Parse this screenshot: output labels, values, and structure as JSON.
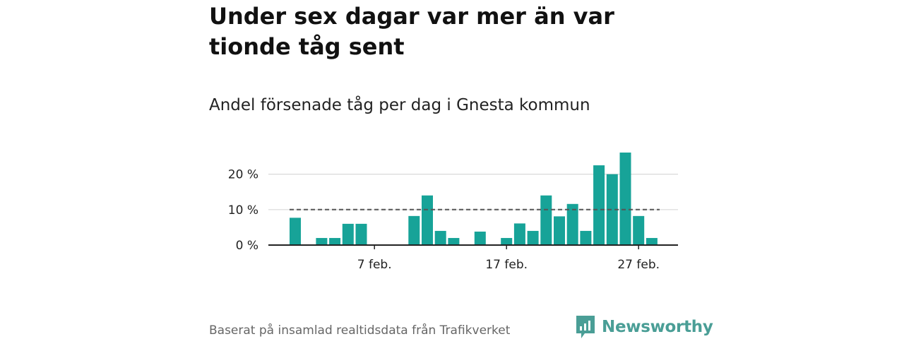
{
  "title": "Under sex dagar var mer än var tionde tåg sent",
  "subtitle": "Andel försenade tåg per dag i Gnesta kommun",
  "source": "Baserat på insamlad realtidsdata från Trafikverket",
  "brand": "Newsworthy",
  "colors": {
    "bar": "#17a398",
    "reference_line": "#555555",
    "grid": "#d9d9d9",
    "brand": "#4a9e96"
  },
  "chart_data": {
    "type": "bar",
    "x": [
      "2024-02-01",
      "2024-02-02",
      "2024-02-03",
      "2024-02-04",
      "2024-02-05",
      "2024-02-06",
      "2024-02-07",
      "2024-02-08",
      "2024-02-09",
      "2024-02-10",
      "2024-02-11",
      "2024-02-12",
      "2024-02-13",
      "2024-02-14",
      "2024-02-15",
      "2024-02-16",
      "2024-02-17",
      "2024-02-18",
      "2024-02-19",
      "2024-02-20",
      "2024-02-21",
      "2024-02-22",
      "2024-02-23",
      "2024-02-24",
      "2024-02-25",
      "2024-02-26",
      "2024-02-27",
      "2024-02-28",
      "2024-02-29"
    ],
    "values": [
      7.7,
      0,
      2.0,
      2.0,
      6.0,
      6.0,
      0,
      0,
      0,
      8.2,
      14.0,
      4.0,
      2.0,
      0,
      3.8,
      0,
      2.0,
      6.1,
      4.0,
      14.0,
      8.1,
      11.6,
      4.0,
      22.5,
      20.0,
      26.1,
      8.2,
      2.0,
      0
    ],
    "reference_line": 10,
    "xtick_labels": [
      "7 feb.",
      "17 feb.",
      "27 feb."
    ],
    "xtick_positions": [
      "2024-02-07",
      "2024-02-17",
      "2024-02-27"
    ],
    "ytick_labels": [
      "0 %",
      "10 %",
      "20 %"
    ],
    "yticks": [
      0,
      10,
      20
    ],
    "ylim": [
      0,
      26.5
    ],
    "grid": true
  }
}
